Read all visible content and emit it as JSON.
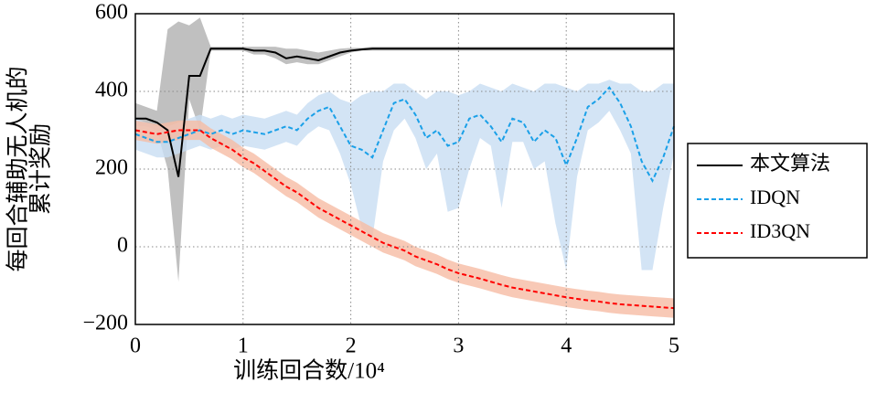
{
  "chart_data": {
    "type": "line",
    "xlabel": "训练回合数/10⁴",
    "ylabel": [
      "每回合辅助无人机的",
      "累计奖励"
    ],
    "x": [
      0,
      0.1,
      0.2,
      0.3,
      0.4,
      0.5,
      0.6,
      0.7,
      0.8,
      0.9,
      1.0,
      1.1,
      1.2,
      1.3,
      1.4,
      1.5,
      1.6,
      1.7,
      1.8,
      1.9,
      2.0,
      2.1,
      2.2,
      2.3,
      2.4,
      2.5,
      2.6,
      2.7,
      2.8,
      2.9,
      3.0,
      3.1,
      3.2,
      3.3,
      3.4,
      3.5,
      3.6,
      3.7,
      3.8,
      3.9,
      4.0,
      4.1,
      4.2,
      4.3,
      4.4,
      4.5,
      4.6,
      4.7,
      4.8,
      4.9,
      5.0
    ],
    "xlim": [
      0,
      5
    ],
    "xticks": [
      0,
      1,
      2,
      3,
      4,
      5
    ],
    "ylim": [
      -200,
      600
    ],
    "yticks": [
      {
        "value": -200,
        "label": "−200"
      },
      0,
      200,
      400,
      600
    ],
    "grid": true,
    "series": [
      {
        "name": "本文算法",
        "color": "#000000",
        "dash": false,
        "band_color": "#b0b0b0",
        "values": [
          330,
          330,
          320,
          300,
          180,
          440,
          440,
          510,
          510,
          510,
          510,
          505,
          505,
          500,
          485,
          490,
          485,
          480,
          490,
          500,
          505,
          508,
          510,
          510,
          510,
          510,
          510,
          510,
          510,
          510,
          510,
          510,
          510,
          510,
          510,
          510,
          510,
          510,
          510,
          510,
          510,
          510,
          510,
          510,
          510,
          510,
          510,
          510,
          510,
          510,
          510
        ],
        "lower": [
          310,
          310,
          300,
          200,
          -90,
          380,
          300,
          505,
          505,
          505,
          505,
          495,
          495,
          485,
          470,
          475,
          470,
          470,
          480,
          490,
          500,
          505,
          505,
          505,
          505,
          505,
          505,
          505,
          505,
          505,
          505,
          505,
          505,
          505,
          505,
          505,
          505,
          505,
          505,
          505,
          505,
          505,
          505,
          505,
          505,
          505,
          505,
          505,
          505,
          505,
          505
        ],
        "upper": [
          370,
          360,
          350,
          560,
          580,
          570,
          590,
          515,
          515,
          515,
          515,
          515,
          515,
          515,
          510,
          510,
          505,
          500,
          505,
          510,
          512,
          512,
          515,
          515,
          515,
          515,
          515,
          515,
          515,
          515,
          515,
          515,
          515,
          515,
          515,
          515,
          515,
          515,
          515,
          515,
          515,
          515,
          515,
          515,
          515,
          515,
          515,
          515,
          515,
          515,
          515
        ]
      },
      {
        "name": "IDQN",
        "color": "#1aa0e8",
        "dash": true,
        "band_color": "#c8ddf3",
        "values": [
          290,
          280,
          270,
          270,
          280,
          290,
          300,
          290,
          300,
          290,
          300,
          295,
          290,
          300,
          310,
          300,
          330,
          350,
          360,
          310,
          260,
          250,
          230,
          300,
          370,
          380,
          340,
          280,
          300,
          260,
          270,
          330,
          340,
          310,
          270,
          330,
          320,
          270,
          300,
          280,
          210,
          280,
          360,
          380,
          410,
          370,
          310,
          220,
          170,
          230,
          310
        ],
        "lower": [
          250,
          240,
          230,
          230,
          240,
          250,
          260,
          250,
          260,
          250,
          260,
          255,
          250,
          260,
          270,
          260,
          290,
          310,
          300,
          240,
          160,
          50,
          20,
          220,
          300,
          330,
          280,
          200,
          240,
          90,
          100,
          200,
          280,
          260,
          100,
          270,
          270,
          200,
          220,
          60,
          -60,
          180,
          300,
          320,
          350,
          300,
          240,
          -60,
          -60,
          100,
          240
        ],
        "upper": [
          330,
          320,
          310,
          310,
          320,
          330,
          340,
          330,
          340,
          330,
          340,
          335,
          330,
          340,
          350,
          340,
          370,
          390,
          400,
          380,
          370,
          390,
          400,
          400,
          420,
          420,
          400,
          380,
          400,
          400,
          390,
          400,
          420,
          410,
          400,
          420,
          410,
          400,
          420,
          420,
          410,
          400,
          420,
          420,
          430,
          420,
          420,
          400,
          400,
          420,
          420
        ]
      },
      {
        "name": "ID3QN",
        "color": "#ff0000",
        "dash": true,
        "band_color": "#f6bca4",
        "values": [
          300,
          295,
          290,
          295,
          300,
          300,
          300,
          280,
          265,
          250,
          230,
          215,
          195,
          175,
          155,
          140,
          120,
          100,
          85,
          70,
          55,
          40,
          25,
          10,
          0,
          -10,
          -25,
          -35,
          -45,
          -58,
          -68,
          -75,
          -82,
          -90,
          -98,
          -105,
          -110,
          -115,
          -120,
          -125,
          -130,
          -134,
          -138,
          -141,
          -145,
          -148,
          -150,
          -152,
          -154,
          -156,
          -158
        ],
        "lower": [
          275,
          270,
          265,
          270,
          275,
          275,
          275,
          255,
          240,
          225,
          205,
          190,
          170,
          150,
          130,
          115,
          95,
          75,
          60,
          45,
          30,
          15,
          0,
          -15,
          -25,
          -35,
          -50,
          -60,
          -70,
          -83,
          -93,
          -100,
          -107,
          -115,
          -123,
          -130,
          -135,
          -140,
          -145,
          -150,
          -155,
          -159,
          -163,
          -166,
          -170,
          -173,
          -175,
          -177,
          -179,
          -181,
          -183
        ],
        "upper": [
          325,
          320,
          315,
          320,
          325,
          325,
          325,
          305,
          290,
          275,
          255,
          240,
          220,
          200,
          180,
          165,
          145,
          125,
          110,
          95,
          80,
          65,
          50,
          35,
          25,
          15,
          0,
          -10,
          -20,
          -33,
          -43,
          -50,
          -57,
          -65,
          -73,
          -80,
          -85,
          -90,
          -95,
          -100,
          -105,
          -109,
          -113,
          -116,
          -120,
          -123,
          -125,
          -127,
          -129,
          -131,
          -133
        ]
      }
    ]
  }
}
